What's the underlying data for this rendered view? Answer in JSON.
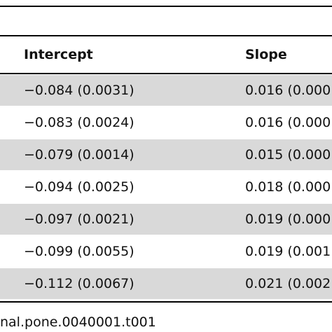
{
  "table": {
    "header": [
      "Intercept",
      "Slope"
    ],
    "rows": [
      [
        "−0.084 (0.0031)",
        "0.016 (0.000"
      ],
      [
        "−0.083 (0.0024)",
        "0.016 (0.000"
      ],
      [
        "−0.079 (0.0014)",
        "0.015 (0.000"
      ],
      [
        "−0.094 (0.0025)",
        "0.018 (0.000"
      ],
      [
        "−0.097 (0.0021)",
        "0.019 (0.000"
      ],
      [
        "−0.099 (0.0055)",
        "0.019 (0.001"
      ],
      [
        "−0.112 (0.0067)",
        "0.021 (0.002"
      ]
    ]
  },
  "footnote": "nal.pone.0040001.t001"
}
